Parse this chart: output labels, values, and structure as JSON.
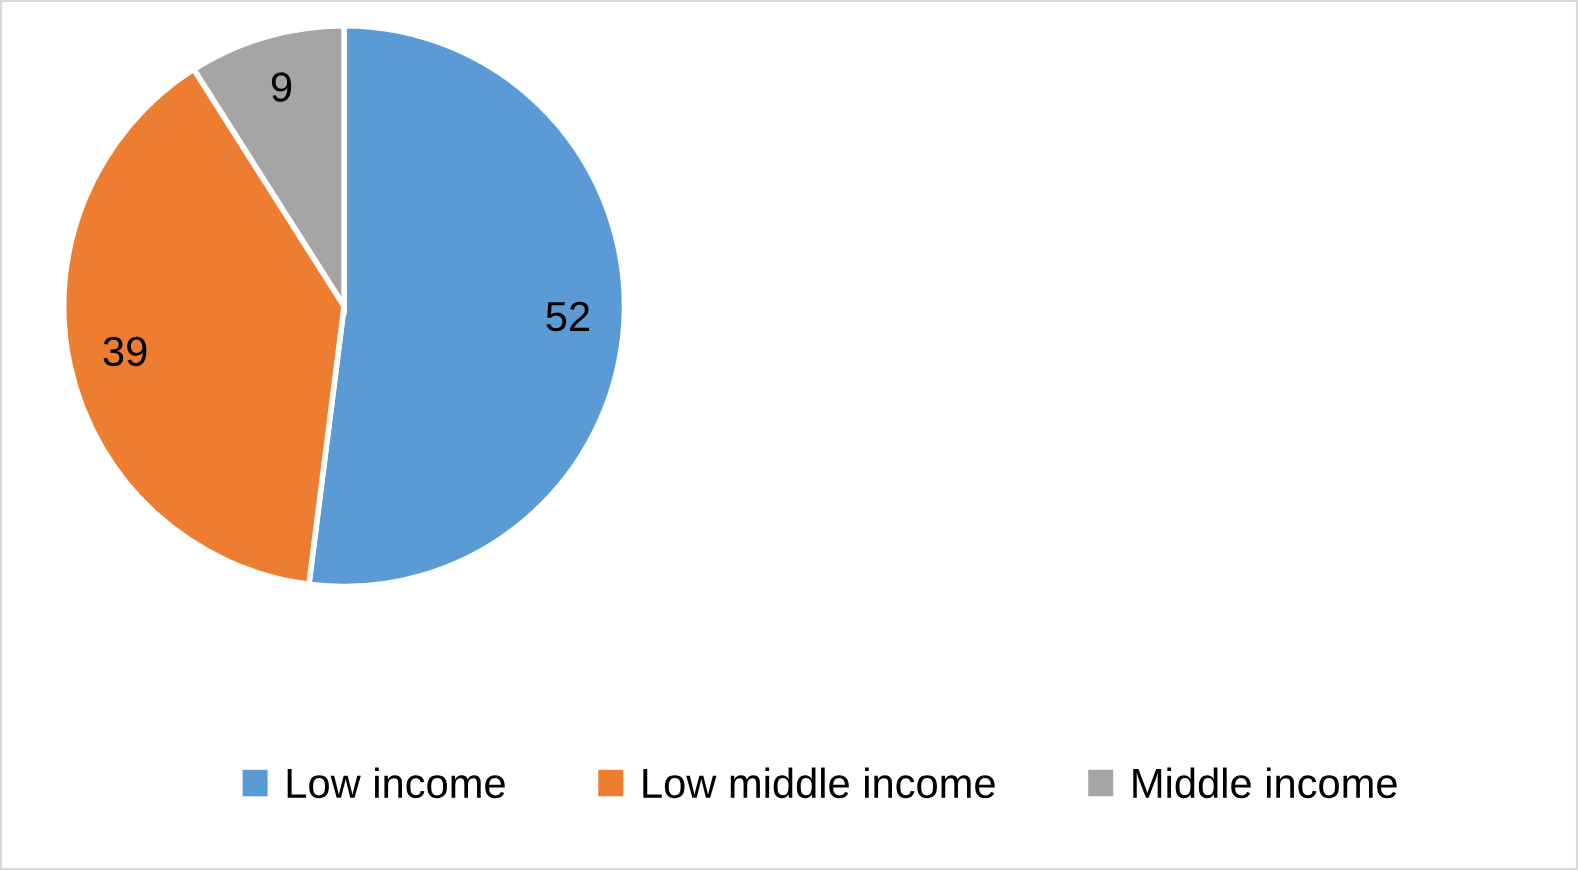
{
  "chart_data": {
    "type": "pie",
    "categories": [
      "Low income",
      "Low middle income",
      "Middle income"
    ],
    "values": [
      52,
      39,
      9
    ],
    "colors": [
      "#5b9bd5",
      "#ed7d31",
      "#a5a5a5"
    ],
    "data_labels": true,
    "legend": "bottom"
  }
}
